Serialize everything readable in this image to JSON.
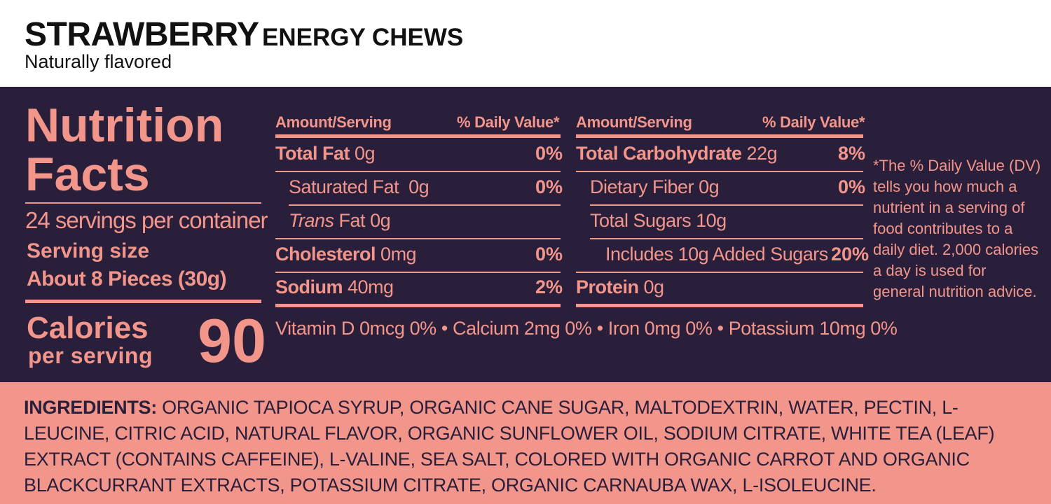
{
  "header": {
    "product_name_bold": "STRAWBERRY",
    "product_name_rest": "ENERGY CHEWS",
    "flavor_note": "Naturally flavored"
  },
  "nutrition": {
    "title_line1": "Nutrition",
    "title_line2": "Facts",
    "servings_per_container": "24 servings per container",
    "serving_size_label": "Serving size",
    "serving_size_value": "About 8 Pieces (30g)",
    "calories_label": "Calories",
    "calories_sub": "per serving",
    "calories_value": "90",
    "left_table": {
      "col_amount": "Amount/Serving",
      "col_dv": "% Daily Value*",
      "rows": [
        {
          "name": "Total Fat",
          "amount": "0g",
          "dv": "0%"
        },
        {
          "name": "Saturated Fat",
          "amount": "0g",
          "dv": "0%"
        },
        {
          "name_italic": "Trans",
          "name": "Fat",
          "amount": "0g",
          "dv": ""
        },
        {
          "name": "Cholesterol",
          "amount": "0mg",
          "dv": "0%"
        },
        {
          "name": "Sodium",
          "amount": "40mg",
          "dv": "2%"
        }
      ]
    },
    "right_table": {
      "col_amount": "Amount/Serving",
      "col_dv": "% Daily Value*",
      "rows": [
        {
          "name": "Total Carbohydrate",
          "amount": "22g",
          "dv": "8%"
        },
        {
          "name": "Dietary Fiber",
          "amount": "0g",
          "dv": "0%"
        },
        {
          "name": "Total Sugars",
          "amount": "10g",
          "dv": ""
        },
        {
          "name": "Includes 10g Added Sugars",
          "amount": "",
          "dv": "20%"
        },
        {
          "name": "Protein",
          "amount": "0g",
          "dv": ""
        }
      ]
    },
    "vitamins_line": "Vitamin D 0mcg 0% • Calcium 2mg 0% • Iron 0mg 0% • Potassium 10mg 0%",
    "footnote": "*The % Daily Value (DV) tells you how much a nutrient in a serving of food contributes to a daily diet. 2,000 calories a day is used for general nutrition advice."
  },
  "ingredients": {
    "label": "INGREDIENTS:",
    "text": "ORGANIC TAPIOCA SYRUP, ORGANIC CANE SUGAR, MALTODEXTRIN, WATER, PECTIN, L-LEUCINE, CITRIC ACID, NATURAL FLAVOR, ORGANIC SUNFLOWER OIL, SODIUM CITRATE, WHITE TEA (LEAF) EXTRACT (CONTAINS CAFFEINE), L-VALINE, SEA SALT, COLORED WITH ORGANIC CARROT AND ORGANIC BLACKCURRANT EXTRACTS, POTASSIUM CITRATE, ORGANIC CARNAUBA WAX, L-ISOLEUCINE."
  },
  "colors": {
    "panel_background": "#2a1f3a",
    "accent_salmon": "#f2958b",
    "header_text": "#111111"
  }
}
